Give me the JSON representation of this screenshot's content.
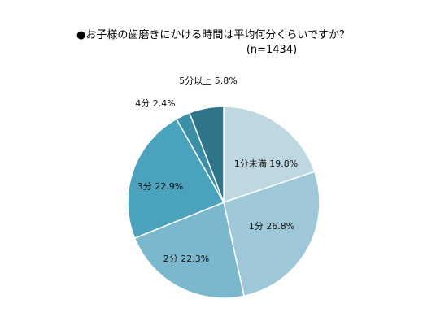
{
  "chart_data": {
    "type": "pie",
    "title": "●お子様の歯磨きにかける時間は平均何分くらいですか？",
    "subtitle": "(n=1434)",
    "categories": [
      "1分未満",
      "1分",
      "2分",
      "3分",
      "4分",
      "5分以上"
    ],
    "values": [
      19.8,
      26.8,
      22.3,
      22.9,
      2.4,
      5.8
    ],
    "labels": [
      "1分未満 19.8%",
      "1分 26.8%",
      "2分 22.3%",
      "3分 22.9%",
      "4分 2.4%",
      "5分以上 5.8%"
    ],
    "colors": [
      "#bed7e0",
      "#9ec8d8",
      "#7bb8cd",
      "#4aa2bd",
      "#3a8fa6",
      "#2f7589"
    ],
    "start_angle_deg": 0,
    "direction": "clockwise",
    "legend": "none"
  }
}
